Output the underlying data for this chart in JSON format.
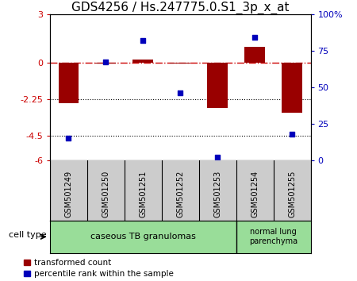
{
  "title": "GDS4256 / Hs.247775.0.S1_3p_x_at",
  "samples": [
    "GSM501249",
    "GSM501250",
    "GSM501251",
    "GSM501252",
    "GSM501253",
    "GSM501254",
    "GSM501255"
  ],
  "transformed_count": [
    -2.5,
    -0.07,
    0.18,
    -0.07,
    -2.8,
    1.0,
    -3.1
  ],
  "percentile_rank": [
    15,
    67,
    82,
    46,
    2,
    84,
    18
  ],
  "ylim_left": [
    -6,
    3
  ],
  "ylim_right": [
    0,
    100
  ],
  "yticks_left": [
    3,
    0,
    -2.25,
    -4.5,
    -6
  ],
  "yticks_right": [
    100,
    75,
    50,
    25,
    0
  ],
  "ytick_left_labels": [
    "3",
    "0",
    "-2.25",
    "-4.5",
    "-6"
  ],
  "ytick_right_labels": [
    "100%",
    "75",
    "50",
    "25",
    "0"
  ],
  "hlines": [
    -2.25,
    -4.5
  ],
  "bar_color": "#990000",
  "scatter_color": "#0000bb",
  "zero_line_color": "#cc0000",
  "group1_label": "caseous TB granulomas",
  "group2_label": "normal lung\nparenchyma",
  "group1_indices": [
    0,
    1,
    2,
    3,
    4
  ],
  "group2_indices": [
    5,
    6
  ],
  "cell_type_label": "cell type",
  "legend_bar_label": "transformed count",
  "legend_scatter_label": "percentile rank within the sample",
  "bar_width": 0.55,
  "title_fontsize": 11,
  "tick_fontsize": 8,
  "label_fontsize": 8,
  "group_bg_color": "#99dd99",
  "sample_bg_color": "#cccccc"
}
